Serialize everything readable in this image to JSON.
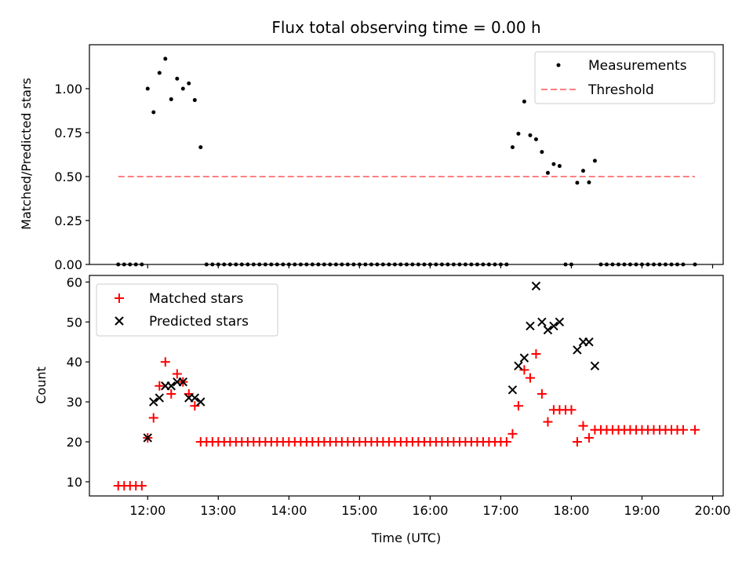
{
  "title": "Flux total observing time = 0.00 h",
  "colors": {
    "matched": "#ff0000",
    "predicted": "#000000",
    "threshold": "#ff8080",
    "measurement": "#000000"
  },
  "chart_data": [
    {
      "type": "scatter",
      "title": "Flux total observing time = 0.00 h",
      "xlabel": "",
      "ylabel": "Matched/Predicted stars",
      "xlim": [
        11.175,
        20.15
      ],
      "ylim": [
        0,
        1.25
      ],
      "yticks": [
        0.0,
        0.25,
        0.5,
        0.75,
        1.0
      ],
      "ytick_labels": [
        "0.00",
        "0.25",
        "0.50",
        "0.75",
        "1.00"
      ],
      "legend_position": "upper right",
      "legend": [
        "Measurements",
        "Threshold"
      ],
      "series": [
        {
          "name": "Measurements",
          "marker": "dot",
          "points": [
            [
              11.583,
              0
            ],
            [
              11.667,
              0
            ],
            [
              11.75,
              0
            ],
            [
              11.833,
              0
            ],
            [
              11.917,
              0
            ],
            [
              12.0,
              1.0
            ],
            [
              12.083,
              0.866
            ],
            [
              12.167,
              1.09
            ],
            [
              12.25,
              1.17
            ],
            [
              12.333,
              0.94
            ],
            [
              12.417,
              1.057
            ],
            [
              12.5,
              1.0
            ],
            [
              12.583,
              1.03
            ],
            [
              12.667,
              0.935
            ],
            [
              12.75,
              0.667
            ],
            [
              12.833,
              0
            ],
            [
              12.917,
              0
            ],
            [
              13.0,
              0
            ],
            [
              13.083,
              0
            ],
            [
              13.167,
              0
            ],
            [
              13.25,
              0
            ],
            [
              13.333,
              0
            ],
            [
              13.417,
              0
            ],
            [
              13.5,
              0
            ],
            [
              13.583,
              0
            ],
            [
              13.667,
              0
            ],
            [
              13.75,
              0
            ],
            [
              13.833,
              0
            ],
            [
              13.917,
              0
            ],
            [
              14.0,
              0
            ],
            [
              14.083,
              0
            ],
            [
              14.167,
              0
            ],
            [
              14.25,
              0
            ],
            [
              14.333,
              0
            ],
            [
              14.417,
              0
            ],
            [
              14.5,
              0
            ],
            [
              14.583,
              0
            ],
            [
              14.667,
              0
            ],
            [
              14.75,
              0
            ],
            [
              14.833,
              0
            ],
            [
              14.917,
              0
            ],
            [
              15.0,
              0
            ],
            [
              15.083,
              0
            ],
            [
              15.167,
              0
            ],
            [
              15.25,
              0
            ],
            [
              15.333,
              0
            ],
            [
              15.417,
              0
            ],
            [
              15.5,
              0
            ],
            [
              15.583,
              0
            ],
            [
              15.667,
              0
            ],
            [
              15.75,
              0
            ],
            [
              15.833,
              0
            ],
            [
              15.917,
              0
            ],
            [
              16.0,
              0
            ],
            [
              16.083,
              0
            ],
            [
              16.167,
              0
            ],
            [
              16.25,
              0
            ],
            [
              16.333,
              0
            ],
            [
              16.417,
              0
            ],
            [
              16.5,
              0
            ],
            [
              16.583,
              0
            ],
            [
              16.667,
              0
            ],
            [
              16.75,
              0
            ],
            [
              16.833,
              0
            ],
            [
              16.917,
              0
            ],
            [
              17.0,
              0
            ],
            [
              17.083,
              0
            ],
            [
              17.167,
              0.667
            ],
            [
              17.25,
              0.744
            ],
            [
              17.333,
              0.927
            ],
            [
              17.417,
              0.735
            ],
            [
              17.5,
              0.712
            ],
            [
              17.583,
              0.64
            ],
            [
              17.667,
              0.521
            ],
            [
              17.75,
              0.571
            ],
            [
              17.833,
              0.56
            ],
            [
              17.917,
              0
            ],
            [
              18.0,
              0
            ],
            [
              18.083,
              0.465
            ],
            [
              18.167,
              0.533
            ],
            [
              18.25,
              0.467
            ],
            [
              18.333,
              0.59
            ],
            [
              18.417,
              0
            ],
            [
              18.5,
              0
            ],
            [
              18.583,
              0
            ],
            [
              18.667,
              0
            ],
            [
              18.75,
              0
            ],
            [
              18.833,
              0
            ],
            [
              18.917,
              0
            ],
            [
              19.0,
              0
            ],
            [
              19.083,
              0
            ],
            [
              19.167,
              0
            ],
            [
              19.25,
              0
            ],
            [
              19.333,
              0
            ],
            [
              19.417,
              0
            ],
            [
              19.5,
              0
            ],
            [
              19.583,
              0
            ],
            [
              19.75,
              0
            ]
          ]
        },
        {
          "name": "Threshold",
          "style": "dashed",
          "points": [
            [
              11.583,
              0.5
            ],
            [
              19.75,
              0.5
            ]
          ]
        }
      ]
    },
    {
      "type": "scatter",
      "title": "",
      "xlabel": "Time (UTC)",
      "ylabel": "Count",
      "xlim": [
        11.175,
        20.15
      ],
      "ylim": [
        6.45,
        61.65
      ],
      "yticks": [
        10,
        20,
        30,
        40,
        50,
        60
      ],
      "ytick_labels": [
        "10",
        "20",
        "30",
        "40",
        "50",
        "60"
      ],
      "xticks": [
        12,
        13,
        14,
        15,
        16,
        17,
        18,
        19,
        20
      ],
      "xtick_labels": [
        "12:00",
        "13:00",
        "14:00",
        "15:00",
        "16:00",
        "17:00",
        "18:00",
        "19:00",
        "20:00"
      ],
      "legend_position": "upper left",
      "legend": [
        "Matched stars",
        "Predicted stars"
      ],
      "series": [
        {
          "name": "Matched stars",
          "marker": "plus",
          "points": [
            [
              11.583,
              9
            ],
            [
              11.667,
              9
            ],
            [
              11.75,
              9
            ],
            [
              11.833,
              9
            ],
            [
              11.917,
              9
            ],
            [
              12.0,
              21
            ],
            [
              12.083,
              26
            ],
            [
              12.167,
              34
            ],
            [
              12.25,
              40
            ],
            [
              12.333,
              32
            ],
            [
              12.417,
              37
            ],
            [
              12.5,
              35
            ],
            [
              12.583,
              32
            ],
            [
              12.667,
              29
            ],
            [
              12.75,
              20
            ],
            [
              12.833,
              20
            ],
            [
              12.917,
              20
            ],
            [
              13.0,
              20
            ],
            [
              13.083,
              20
            ],
            [
              13.167,
              20
            ],
            [
              13.25,
              20
            ],
            [
              13.333,
              20
            ],
            [
              13.417,
              20
            ],
            [
              13.5,
              20
            ],
            [
              13.583,
              20
            ],
            [
              13.667,
              20
            ],
            [
              13.75,
              20
            ],
            [
              13.833,
              20
            ],
            [
              13.917,
              20
            ],
            [
              14.0,
              20
            ],
            [
              14.083,
              20
            ],
            [
              14.167,
              20
            ],
            [
              14.25,
              20
            ],
            [
              14.333,
              20
            ],
            [
              14.417,
              20
            ],
            [
              14.5,
              20
            ],
            [
              14.583,
              20
            ],
            [
              14.667,
              20
            ],
            [
              14.75,
              20
            ],
            [
              14.833,
              20
            ],
            [
              14.917,
              20
            ],
            [
              15.0,
              20
            ],
            [
              15.083,
              20
            ],
            [
              15.167,
              20
            ],
            [
              15.25,
              20
            ],
            [
              15.333,
              20
            ],
            [
              15.417,
              20
            ],
            [
              15.5,
              20
            ],
            [
              15.583,
              20
            ],
            [
              15.667,
              20
            ],
            [
              15.75,
              20
            ],
            [
              15.833,
              20
            ],
            [
              15.917,
              20
            ],
            [
              16.0,
              20
            ],
            [
              16.083,
              20
            ],
            [
              16.167,
              20
            ],
            [
              16.25,
              20
            ],
            [
              16.333,
              20
            ],
            [
              16.417,
              20
            ],
            [
              16.5,
              20
            ],
            [
              16.583,
              20
            ],
            [
              16.667,
              20
            ],
            [
              16.75,
              20
            ],
            [
              16.833,
              20
            ],
            [
              16.917,
              20
            ],
            [
              17.0,
              20
            ],
            [
              17.083,
              20
            ],
            [
              17.167,
              22
            ],
            [
              17.25,
              29
            ],
            [
              17.333,
              38
            ],
            [
              17.417,
              36
            ],
            [
              17.5,
              42
            ],
            [
              17.583,
              32
            ],
            [
              17.667,
              25
            ],
            [
              17.75,
              28
            ],
            [
              17.833,
              28
            ],
            [
              17.917,
              28
            ],
            [
              18.0,
              28
            ],
            [
              18.083,
              20
            ],
            [
              18.167,
              24
            ],
            [
              18.25,
              21
            ],
            [
              18.333,
              23
            ],
            [
              18.417,
              23
            ],
            [
              18.5,
              23
            ],
            [
              18.583,
              23
            ],
            [
              18.667,
              23
            ],
            [
              18.75,
              23
            ],
            [
              18.833,
              23
            ],
            [
              18.917,
              23
            ],
            [
              19.0,
              23
            ],
            [
              19.083,
              23
            ],
            [
              19.167,
              23
            ],
            [
              19.25,
              23
            ],
            [
              19.333,
              23
            ],
            [
              19.417,
              23
            ],
            [
              19.5,
              23
            ],
            [
              19.583,
              23
            ],
            [
              19.75,
              23
            ]
          ]
        },
        {
          "name": "Predicted stars",
          "marker": "x",
          "points": [
            [
              12.0,
              21
            ],
            [
              12.083,
              30
            ],
            [
              12.167,
              31
            ],
            [
              12.25,
              34
            ],
            [
              12.333,
              34
            ],
            [
              12.417,
              35
            ],
            [
              12.5,
              35
            ],
            [
              12.583,
              31
            ],
            [
              12.667,
              31
            ],
            [
              12.75,
              30
            ],
            [
              17.167,
              33
            ],
            [
              17.25,
              39
            ],
            [
              17.333,
              41
            ],
            [
              17.417,
              49
            ],
            [
              17.5,
              59
            ],
            [
              17.583,
              50
            ],
            [
              17.667,
              48
            ],
            [
              17.75,
              49
            ],
            [
              17.833,
              50
            ],
            [
              18.083,
              43
            ],
            [
              18.167,
              45
            ],
            [
              18.25,
              45
            ],
            [
              18.333,
              39
            ]
          ]
        }
      ]
    }
  ]
}
